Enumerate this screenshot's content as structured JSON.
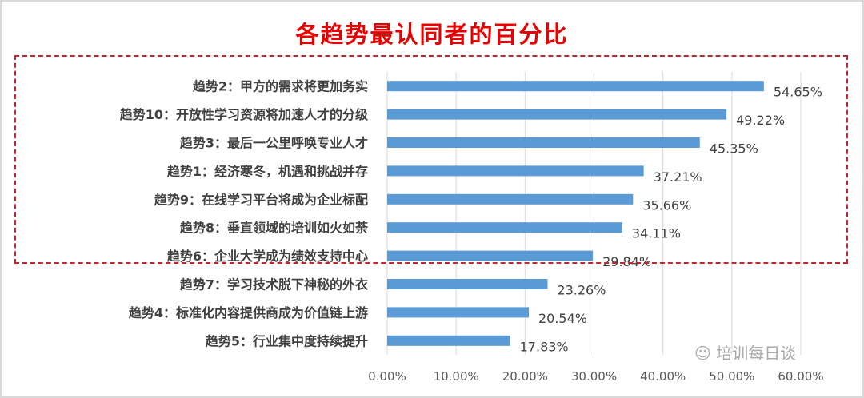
{
  "chart_data": {
    "type": "bar",
    "orientation": "horizontal",
    "title": "各趋势最认同者的百分比",
    "categories": [
      "趋势2：甲方的需求将更加务实",
      "趋势10：开放性学习资源将加速人才的分级",
      "趋势3：最后一公里呼唤专业人才",
      "趋势1：经济寒冬，机遇和挑战并存",
      "趋势9：在线学习平台将成为企业标配",
      "趋势8：垂直领域的培训如火如荼",
      "趋势6：企业大学成为绩效支持中心",
      "趋势7：学习技术脱下神秘的外衣",
      "趋势4：标准化内容提供商成为价值链上游",
      "趋势5：行业集中度持续提升"
    ],
    "values": [
      54.65,
      49.22,
      45.35,
      37.21,
      35.66,
      34.11,
      29.84,
      23.26,
      20.54,
      17.83
    ],
    "value_labels": [
      "54.65%",
      "49.22%",
      "45.35%",
      "37.21%",
      "35.66%",
      "34.11%",
      "29.84%",
      "23.26%",
      "20.54%",
      "17.83%"
    ],
    "xlim": [
      0,
      60
    ],
    "xticks": [
      "0.00%",
      "10.00%",
      "20.00%",
      "30.00%",
      "40.00%",
      "50.00%",
      "60.00%"
    ],
    "grid": true,
    "bar_color": "#5b9bd5",
    "highlight": "top 7 items enclosed in red dashed box"
  },
  "watermark": "培训每日谈"
}
